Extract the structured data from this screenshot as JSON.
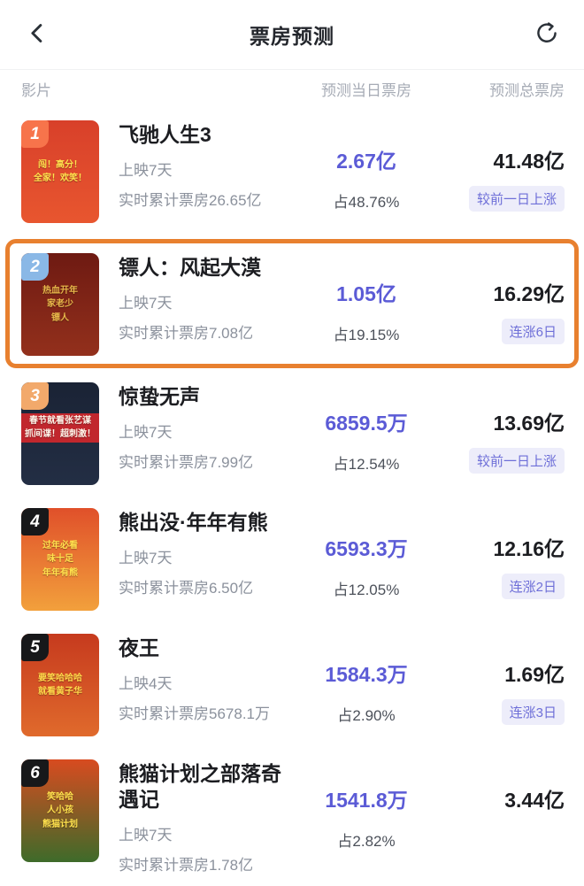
{
  "header": {
    "title": "票房预测",
    "back_icon": "chevron-left",
    "refresh_icon": "refresh-arrow"
  },
  "columns": {
    "film": "影片",
    "daily": "预测当日票房",
    "total": "预测总票房"
  },
  "colors": {
    "daily_accent": "#5B5BD6",
    "trend_badge_bg": "#EDEDFA",
    "trend_badge_text": "#6E6FD8",
    "highlight_border": "#E8802F"
  },
  "movies": [
    {
      "rank": "1",
      "rank_bg": "#F7744B",
      "title": "飞驰人生3",
      "release_days": "上映7天",
      "cumulative": "实时累计票房26.65亿",
      "daily_value": "2.67亿",
      "daily_share": "占48.76%",
      "total_value": "41.48亿",
      "trend_badge": "较前一日上涨",
      "highlighted": false,
      "poster": {
        "bg_top": "#D8402A",
        "bg_bottom": "#E8562F",
        "text_color": "#FFE14D",
        "band_bg": "",
        "lines": [
          "闯！高分！",
          "全家！欢笑！"
        ]
      }
    },
    {
      "rank": "2",
      "rank_bg": "#8AB8E6",
      "title": "镖人：风起大漠",
      "release_days": "上映7天",
      "cumulative": "实时累计票房7.08亿",
      "daily_value": "1.05亿",
      "daily_share": "占19.15%",
      "total_value": "16.29亿",
      "trend_badge": "连涨6日",
      "highlighted": true,
      "poster": {
        "bg_top": "#6E1A12",
        "bg_bottom": "#93301C",
        "text_color": "#E8B84A",
        "band_bg": "",
        "lines": [
          "热血开年",
          "家老少",
          "镖人"
        ]
      }
    },
    {
      "rank": "3",
      "rank_bg": "#F2A96B",
      "title": "惊蛰无声",
      "release_days": "上映7天",
      "cumulative": "实时累计票房7.99亿",
      "daily_value": "6859.5万",
      "daily_share": "占12.54%",
      "total_value": "13.69亿",
      "trend_badge": "较前一日上涨",
      "highlighted": false,
      "poster": {
        "bg_top": "#1A2335",
        "bg_bottom": "#232E44",
        "text_color": "#FFF4E8",
        "band_bg": "#C1272D",
        "lines": [
          "春节就看张艺谋",
          "抓间谍！超刺激！"
        ]
      }
    },
    {
      "rank": "4",
      "rank_bg": "#17181A",
      "title": "熊出没·年年有熊",
      "release_days": "上映7天",
      "cumulative": "实时累计票房6.50亿",
      "daily_value": "6593.3万",
      "daily_share": "占12.05%",
      "total_value": "12.16亿",
      "trend_badge": "连涨2日",
      "highlighted": false,
      "poster": {
        "bg_top": "#E0502A",
        "bg_bottom": "#F2A03C",
        "text_color": "#FFE14D",
        "band_bg": "",
        "lines": [
          "过年必看",
          "味十足",
          "年年有熊"
        ]
      }
    },
    {
      "rank": "5",
      "rank_bg": "#17181A",
      "title": "夜王",
      "release_days": "上映4天",
      "cumulative": "实时累计票房5678.1万",
      "daily_value": "1584.3万",
      "daily_share": "占2.90%",
      "total_value": "1.69亿",
      "trend_badge": "连涨3日",
      "highlighted": false,
      "poster": {
        "bg_top": "#C63A1E",
        "bg_bottom": "#E06A2C",
        "text_color": "#FFD94A",
        "band_bg": "",
        "lines": [
          "要笑哈哈哈",
          "就看黄子华"
        ]
      }
    },
    {
      "rank": "6",
      "rank_bg": "#17181A",
      "title": "熊猫计划之部落奇遇记",
      "release_days": "上映7天",
      "cumulative": "实时累计票房1.78亿",
      "daily_value": "1541.8万",
      "daily_share": "占2.82%",
      "total_value": "3.44亿",
      "trend_badge": "",
      "highlighted": false,
      "poster": {
        "bg_top": "#D84B20",
        "bg_bottom": "#3E6B2A",
        "text_color": "#FFE14D",
        "band_bg": "",
        "lines": [
          "笑哈哈",
          "人小孩",
          "熊猫计划"
        ]
      }
    }
  ]
}
